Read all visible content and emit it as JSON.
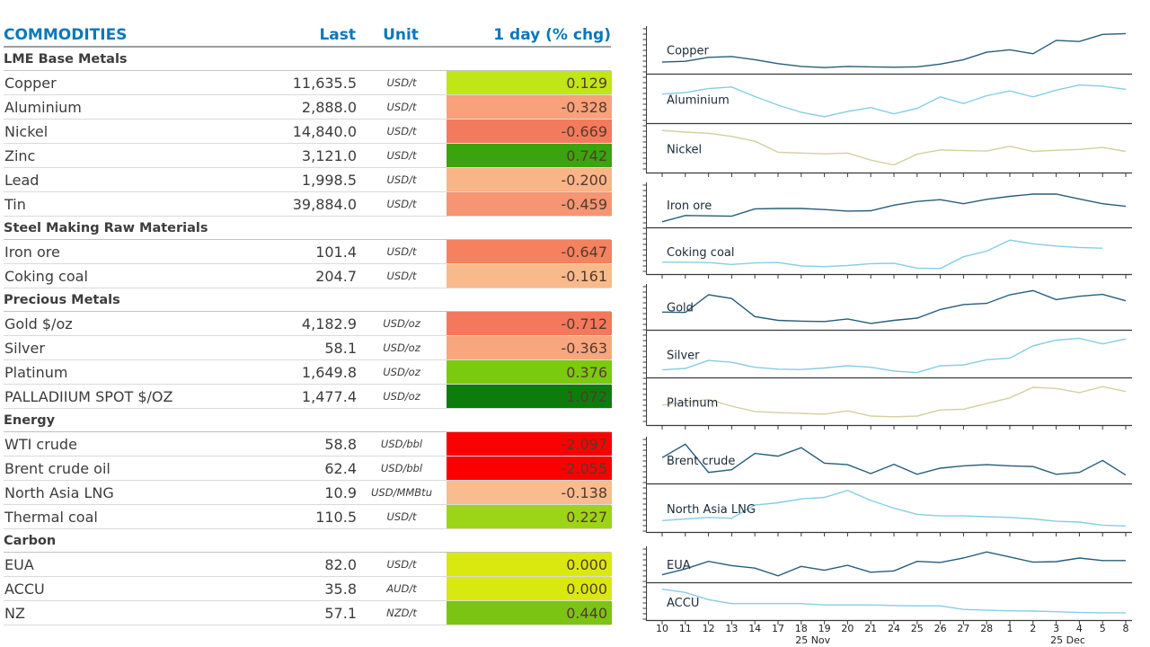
{
  "table": {
    "columns": {
      "name": "COMMODITIES",
      "last": "Last",
      "unit": "Unit",
      "chg": "1 day (% chg)"
    },
    "header_color": "#0a78ba",
    "chg_text_color": "#553a2c",
    "sections": [
      {
        "label": "LME Base Metals",
        "rows": [
          {
            "name": "Copper",
            "last": "11,635.5",
            "unit": "USD/t",
            "chg": "0.129",
            "bg": "#c0e617"
          },
          {
            "name": "Aluminium",
            "last": "2,888.0",
            "unit": "USD/t",
            "chg": "-0.328",
            "bg": "#f8a17b"
          },
          {
            "name": "Nickel",
            "last": "14,840.0",
            "unit": "USD/t",
            "chg": "-0.669",
            "bg": "#f47a5e"
          },
          {
            "name": "Zinc",
            "last": "3,121.0",
            "unit": "USD/t",
            "chg": "0.742",
            "bg": "#3aa40e"
          },
          {
            "name": "Lead",
            "last": "1,998.5",
            "unit": "USD/t",
            "chg": "-0.200",
            "bg": "#f9b488"
          },
          {
            "name": "Tin",
            "last": "39,884.0",
            "unit": "USD/t",
            "chg": "-0.459",
            "bg": "#f69573"
          }
        ]
      },
      {
        "label": "Steel Making Raw Materials",
        "rows": [
          {
            "name": "Iron ore",
            "last": "101.4",
            "unit": "USD/t",
            "chg": "-0.647",
            "bg": "#f5815f"
          },
          {
            "name": "Coking coal",
            "last": "204.7",
            "unit": "USD/t",
            "chg": "-0.161",
            "bg": "#f9ba8b"
          }
        ]
      },
      {
        "label": "Precious Metals",
        "rows": [
          {
            "name": "Gold $/oz",
            "last": "4,182.9",
            "unit": "USD/oz",
            "chg": "-0.712",
            "bg": "#f4785c"
          },
          {
            "name": "Silver",
            "last": "58.1",
            "unit": "USD/oz",
            "chg": "-0.363",
            "bg": "#f8a67e"
          },
          {
            "name": "Platinum",
            "last": "1,649.8",
            "unit": "USD/oz",
            "chg": "0.376",
            "bg": "#79ca10"
          },
          {
            "name": "PALLADIIUM SPOT $/OZ",
            "last": "1,477.4",
            "unit": "USD/oz",
            "chg": "1.072",
            "bg": "#0c7d0c"
          }
        ]
      },
      {
        "label": "Energy",
        "rows": [
          {
            "name": "WTI crude",
            "last": "58.8",
            "unit": "USD/bbl",
            "chg": "-2.097",
            "bg": "#fb0000"
          },
          {
            "name": "Brent crude oil",
            "last": "62.4",
            "unit": "USD/bbl",
            "chg": "-2.055",
            "bg": "#fb0000"
          },
          {
            "name": "North Asia LNG",
            "last": "10.9",
            "unit": "USD/MMBtu",
            "chg": "-0.138",
            "bg": "#f8bc8e"
          },
          {
            "name": "Thermal coal",
            "last": "110.5",
            "unit": "USD/t",
            "chg": "0.227",
            "bg": "#9cd517"
          }
        ]
      },
      {
        "label": "Carbon",
        "rows": [
          {
            "name": "EUA",
            "last": "82.0",
            "unit": "USD/t",
            "chg": "0.000",
            "bg": "#d9e90f"
          },
          {
            "name": "ACCU",
            "last": "35.8",
            "unit": "AUD/t",
            "chg": "0.000",
            "bg": "#d9e90f"
          },
          {
            "name": "NZ",
            "last": "57.1",
            "unit": "NZD/t",
            "chg": "0.440",
            "bg": "#7cc414"
          }
        ]
      }
    ]
  },
  "chart_data": {
    "type": "line",
    "subtype": "sparkline-panels",
    "grid": false,
    "legend_position": "in-panel-labels",
    "x_categories": [
      "10",
      "11",
      "12",
      "13",
      "14",
      "17",
      "18",
      "19",
      "20",
      "21",
      "24",
      "25",
      "26",
      "27",
      "28",
      "1",
      "2",
      "3",
      "4",
      "5",
      "8"
    ],
    "x_axis_annotations": [
      {
        "label": "25 Nov",
        "center_between_indices": [
          6,
          7
        ]
      },
      {
        "label": "25 Dec",
        "center_between_indices": [
          17,
          18
        ]
      }
    ],
    "y_axis_note": "unlabeled minor ticks; series values normalized 0-100 of each panel height",
    "colors": {
      "navy": "#275d7b",
      "lightblue": "#85cde6",
      "khaki": "#d5cfa0"
    },
    "groups": [
      {
        "panels": [
          {
            "label": "Copper",
            "color": "#275d7b",
            "values": [
              18,
              20,
              30,
              32,
              24,
              14,
              7,
              4,
              7,
              6,
              5,
              6,
              13,
              24,
              43,
              49,
              39,
              73,
              70,
              88,
              90
            ]
          },
          {
            "label": "Aluminium",
            "color": "#85cde6",
            "values": [
              62,
              66,
              76,
              80,
              56,
              34,
              16,
              5,
              18,
              28,
              12,
              26,
              55,
              38,
              58,
              70,
              55,
              72,
              85,
              82,
              74
            ]
          },
          {
            "label": "Nickel",
            "color": "#d5cfa0",
            "values": [
              95,
              91,
              88,
              80,
              68,
              40,
              38,
              36,
              38,
              20,
              8,
              35,
              46,
              44,
              43,
              55,
              42,
              45,
              47,
              52,
              42
            ]
          }
        ]
      },
      {
        "panels": [
          {
            "label": "Iron ore",
            "color": "#275d7b",
            "values": [
              3,
              20,
              19,
              18,
              38,
              39,
              39,
              36,
              32,
              33,
              48,
              58,
              63,
              52,
              64,
              72,
              78,
              78,
              65,
              52,
              45
            ]
          },
          {
            "label": "Coking coal",
            "color": "#85cde6",
            "values": [
              20,
              20,
              19,
              14,
              18,
              19,
              10,
              8,
              11,
              16,
              17,
              4,
              3,
              35,
              50,
              80,
              70,
              64,
              60,
              58,
              null
            ]
          }
        ]
      },
      {
        "panels": [
          {
            "label": "Gold",
            "color": "#275d7b",
            "values": [
              35,
              34,
              81,
              71,
              23,
              13,
              11,
              10,
              17,
              5,
              13,
              19,
              42,
              55,
              58,
              81,
              92,
              68,
              77,
              82,
              65
            ]
          },
          {
            "label": "Silver",
            "color": "#85cde6",
            "values": [
              8,
              12,
              33,
              28,
              15,
              10,
              9,
              13,
              19,
              15,
              5,
              1,
              19,
              21,
              35,
              39,
              72,
              87,
              92,
              77,
              90
            ]
          },
          {
            "label": "Platinum",
            "color": "#d5cfa0",
            "values": [
              41,
              48,
              56,
              38,
              24,
              21,
              19,
              17,
              26,
              12,
              10,
              12,
              28,
              30,
              45,
              60,
              88,
              85,
              74,
              90,
              77
            ]
          }
        ]
      },
      {
        "panels": [
          {
            "label": "Brent crude",
            "color": "#275d7b",
            "values": [
              55,
              90,
              17,
              24,
              66,
              59,
              81,
              41,
              37,
              14,
              38,
              12,
              28,
              34,
              37,
              34,
              32,
              12,
              17,
              48,
              10
            ]
          },
          {
            "label": "North Asia LNG",
            "color": "#85cde6",
            "values": [
              18,
              22,
              26,
              24,
              58,
              64,
              74,
              78,
              96,
              70,
              50,
              34,
              30,
              30,
              28,
              26,
              22,
              16,
              14,
              6,
              4
            ]
          }
        ]
      },
      {
        "panels": [
          {
            "label": "EUA",
            "color": "#275d7b",
            "values": [
              11,
              32,
              59,
              44,
              35,
              7,
              41,
              27,
              45,
              20,
              25,
              59,
              55,
              71,
              93,
              75,
              56,
              58,
              71,
              62,
              62
            ]
          },
          {
            "label": "ACCU",
            "color": "#85cde6",
            "values": [
              95,
              83,
              57,
              43,
              43,
              43,
              43,
              38,
              38,
              38,
              36,
              35,
              35,
              22,
              19,
              17,
              16,
              14,
              11,
              10,
              10
            ]
          }
        ]
      }
    ]
  }
}
